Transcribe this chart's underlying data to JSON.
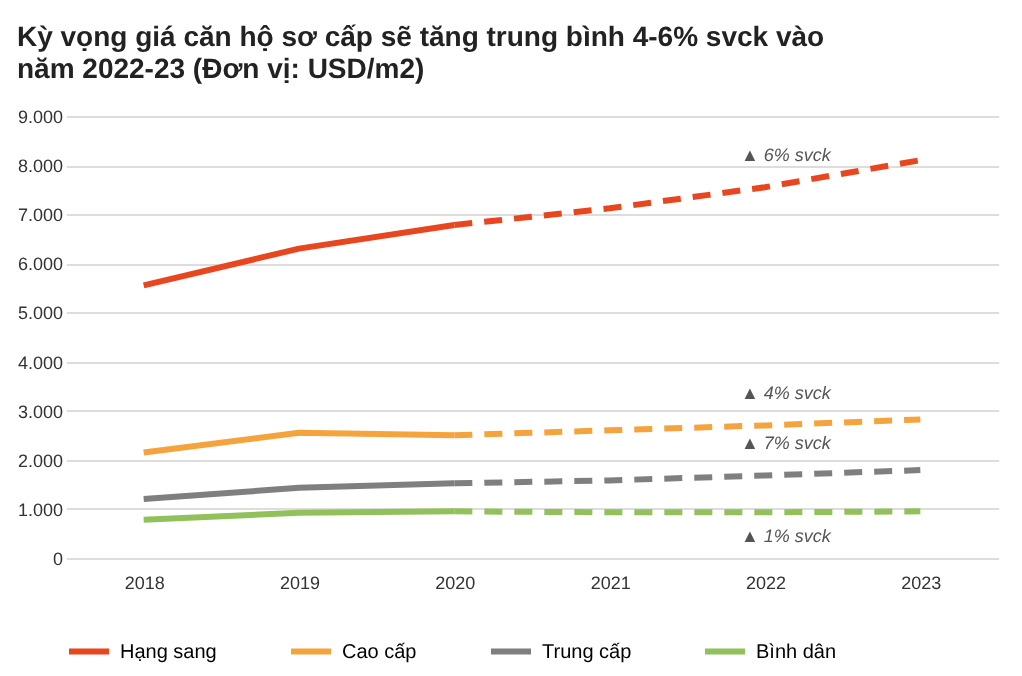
{
  "chart_data": {
    "type": "line",
    "title": "Kỳ vọng giá căn hộ sơ cấp sẽ tăng trung bình 4-6% svck vào năm 2022-23 (Đơn vị: USD/m2)",
    "categories": [
      "2018",
      "2019",
      "2020",
      "2021",
      "2022",
      "2023"
    ],
    "series": [
      {
        "name": "Hạng sang",
        "color": "#e8461e",
        "line_style": "solid",
        "values": [
          5550,
          6300,
          6780,
          null,
          null,
          null
        ]
      },
      {
        "name": "Cao cấp",
        "color": "#f5a33c",
        "line_style": "solid",
        "values": [
          2150,
          2550,
          2500,
          null,
          null,
          null
        ]
      },
      {
        "name": "Trung cấp",
        "color": "#7f7f7f",
        "line_style": "solid",
        "values": [
          1200,
          1430,
          1520,
          null,
          null,
          null
        ]
      },
      {
        "name": "Bình dân",
        "color": "#92c05a",
        "line_style": "solid",
        "values": [
          780,
          920,
          950,
          null,
          null,
          null
        ]
      },
      {
        "color": "#e8461e",
        "line_style": "dashed",
        "values": [
          null,
          null,
          6780,
          7120,
          7550,
          8100
        ]
      },
      {
        "color": "#f5a33c",
        "line_style": "dashed",
        "values": [
          null,
          null,
          2500,
          2600,
          2700,
          2820
        ]
      },
      {
        "color": "#7f7f7f",
        "line_style": "dashed",
        "values": [
          null,
          null,
          1520,
          1580,
          1680,
          1790
        ]
      },
      {
        "color": "#92c05a",
        "line_style": "dashed",
        "values": [
          null,
          null,
          950,
          930,
          930,
          950
        ]
      }
    ],
    "ylim": [
      0,
      9000
    ],
    "yticks": [
      0,
      {
        "value": 1000,
        "label": "1.000"
      },
      {
        "value": 2000,
        "label": "2.000"
      },
      {
        "value": 3000,
        "label": "3.000"
      },
      {
        "value": 4000,
        "label": "4.000"
      },
      {
        "value": 5000,
        "label": "5.000"
      },
      {
        "value": 6000,
        "label": "6.000"
      },
      {
        "value": 7000,
        "label": "7.000"
      },
      {
        "value": 8000,
        "label": "8.000"
      },
      {
        "value": 9000,
        "label": "9.000"
      }
    ],
    "annotations": [
      {
        "text": "▲ 6% svck",
        "x": "2022",
        "y": 7550
      },
      {
        "text": "▲ 4% svck",
        "x": "2022",
        "y": 2700
      },
      {
        "text": "▲ 7% svck",
        "x": "2022",
        "y": 1680
      },
      {
        "text": "▲ 1% svck",
        "x": "2022",
        "y": 930
      }
    ],
    "grid": "y",
    "legend": "bottom"
  }
}
